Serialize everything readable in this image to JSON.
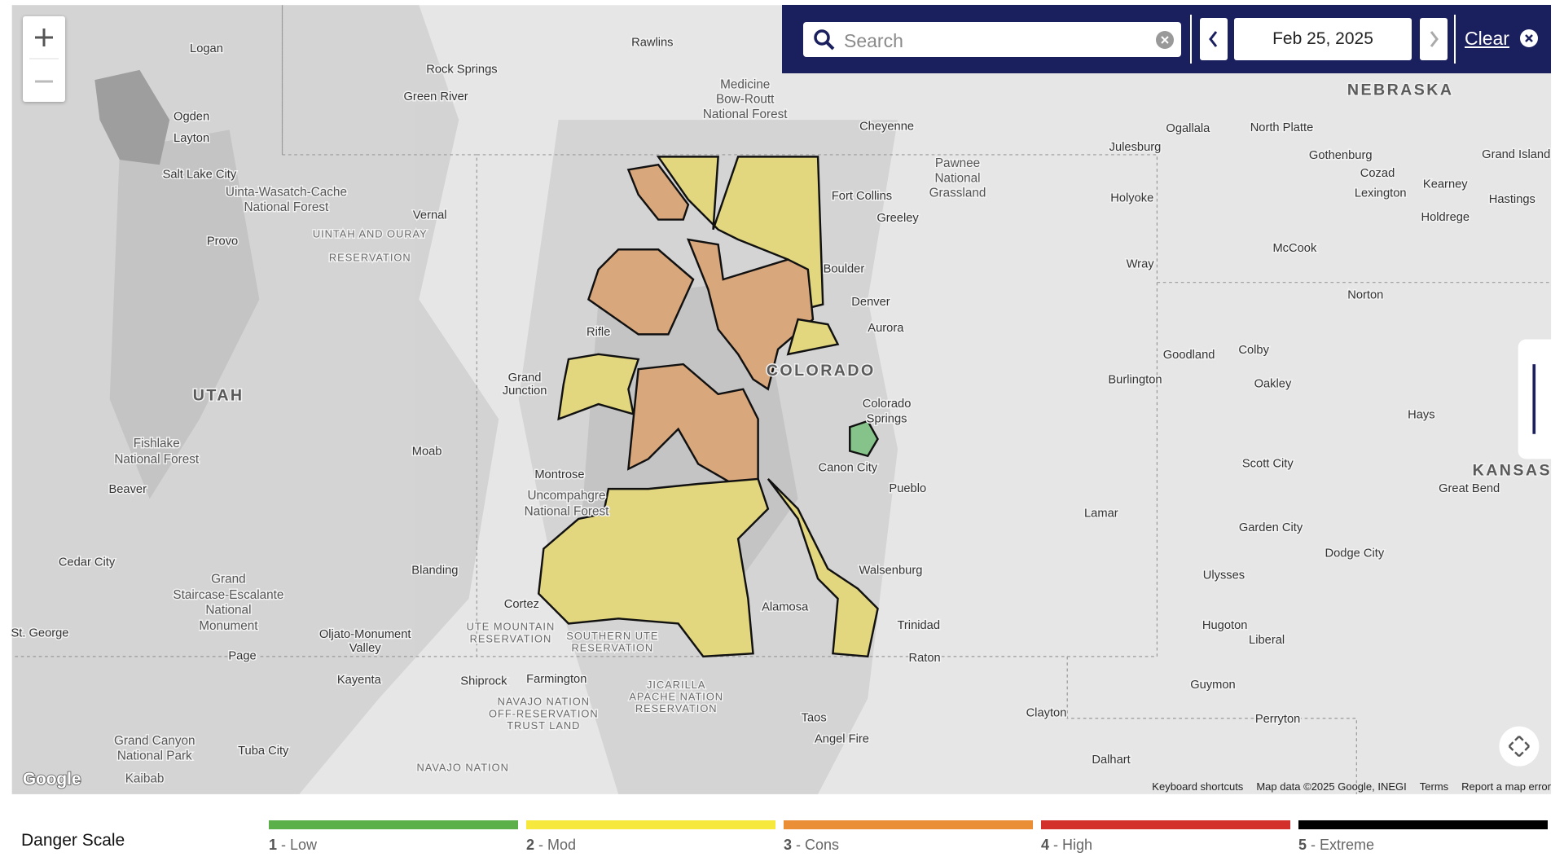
{
  "search": {
    "placeholder": "Search"
  },
  "date": "Feb 25, 2025",
  "clear": "Clear",
  "logo": "Google",
  "attribution": [
    "Keyboard shortcuts",
    "Map data ©2025 Google, INEGI",
    "Terms",
    "Report a map error"
  ],
  "map": {
    "labels": [
      "Logan",
      "Rawlins",
      "Rock Springs",
      "Green River",
      "Medicine",
      "Bow-Routt",
      "National Forest",
      "Ogden",
      "Layton",
      "Salt Lake City",
      "Uinta-Wasatch-Cache",
      "National Forest",
      "Provo",
      "Vernal",
      "UINTAH AND OURAY",
      "RESERVATION",
      "Cheyenne",
      "Pawnee",
      "National",
      "Grassland",
      "Julesburg",
      "Ogallala",
      "North Platte",
      "NEBRASKA",
      "Gothenburg",
      "Grand Island",
      "Cozad",
      "Kearney",
      "Lexington",
      "Hastings",
      "Holdrege",
      "Fort Collins",
      "Greeley",
      "Holyoke",
      "McCook",
      "Wray",
      "Boulder",
      "Denver",
      "Aurora",
      "Norton",
      "Rifle",
      "Goodland",
      "Colby",
      "Grand",
      "Junction",
      "COLORADO",
      "Burlington",
      "Oakley",
      "Colorado",
      "Springs",
      "Hays",
      "UTAH",
      "Fishlake",
      "National Forest",
      "Moab",
      "Montrose",
      "Canon City",
      "Scott City",
      "Great Bend",
      "KANSAS",
      "Beaver",
      "Uncompahgre",
      "National Forest",
      "Pueblo",
      "Lamar",
      "Garden City",
      "Dodge City",
      "Cedar City",
      "Blanding",
      "Walsenburg",
      "Ulysses",
      "Grand",
      "Staircase-Escalante",
      "National",
      "Monument",
      "Cortez",
      "Alamosa",
      "Trinidad",
      "Hugoton",
      "Liberal",
      "St. George",
      "Oljato-Monument",
      "Valley",
      "UTE MOUNTAIN",
      "RESERVATION",
      "SOUTHERN UTE",
      "RESERVATION",
      "Page",
      "Raton",
      "Kayenta",
      "Shiprock",
      "Farmington",
      "JICARILLA",
      "APACHE NATION",
      "RESERVATION",
      "Guymon",
      "NAVAJO NATION",
      "OFF-RESERVATION",
      "TRUST LAND",
      "Clayton",
      "Perryton",
      "Taos",
      "Grand Canyon",
      "National Park",
      "Tuba City",
      "Angel Fire",
      "Kaibab",
      "NAVAJO NATION",
      "Dalhart"
    ]
  },
  "legend": {
    "title": "Danger Scale",
    "levels": [
      {
        "number": "1",
        "label": "- Low",
        "color": "#5cb04a"
      },
      {
        "number": "2",
        "label": "- Mod",
        "color": "#f6e83c"
      },
      {
        "number": "3",
        "label": "- Cons",
        "color": "#ea8f35"
      },
      {
        "number": "4",
        "label": "- High",
        "color": "#d3302c"
      },
      {
        "number": "5",
        "label": "- Extreme",
        "color": "#000000"
      }
    ]
  }
}
